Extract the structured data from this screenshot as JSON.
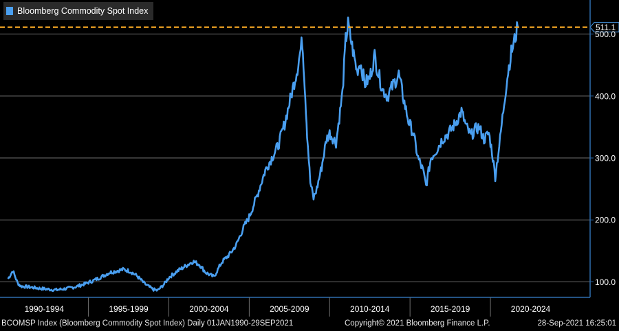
{
  "colors": {
    "background": "#000000",
    "series": "#4a9ff0",
    "reference": "#f5a623",
    "grid": "#707070",
    "axis": "#2f6fb0",
    "text": "#ffffff"
  },
  "legend": {
    "label": "Bloomberg Commodity Spot Index"
  },
  "footer": {
    "left": "BCOMSP Index (Bloomberg Commodity Spot Index)  Daily 01JAN1990-29SEP2021",
    "mid": "Copyright© 2021 Bloomberg Finance L.P.",
    "right": "28-Sep-2021 16:25:01"
  },
  "chart_data": {
    "type": "line",
    "title": "",
    "xlabel": "",
    "ylabel": "",
    "ylim": [
      75,
      555
    ],
    "xlim": [
      1989.5,
      2026.2
    ],
    "grid": true,
    "legend_position": "top-left",
    "y_ticks": [
      {
        "value": 100,
        "label": "100.0"
      },
      {
        "value": 200,
        "label": "200.0"
      },
      {
        "value": 300,
        "label": "300.0"
      },
      {
        "value": 400,
        "label": "400.0"
      },
      {
        "value": 500,
        "label": "500.0"
      }
    ],
    "x_groups": [
      {
        "label": "1990-1994",
        "start": 1989.5,
        "end": 1995.0
      },
      {
        "label": "1995-1999",
        "start": 1995.0,
        "end": 2000.0
      },
      {
        "label": "2000-2004",
        "start": 2000.0,
        "end": 2005.0
      },
      {
        "label": "2005-2009",
        "start": 2005.0,
        "end": 2010.0
      },
      {
        "label": "2010-2014",
        "start": 2010.0,
        "end": 2015.0
      },
      {
        "label": "2015-2019",
        "start": 2015.0,
        "end": 2020.0
      },
      {
        "label": "2020-2024",
        "start": 2020.0,
        "end": 2026.2
      }
    ],
    "reference_line": {
      "value": 511.1,
      "label": "511.1"
    },
    "series": [
      {
        "name": "Bloomberg Commodity Spot Index",
        "x": [
          1990.0,
          1990.3,
          1990.6,
          1990.8,
          1991.2,
          1991.8,
          1992.5,
          1993.0,
          1993.6,
          1994.2,
          1994.8,
          1995.3,
          1995.8,
          1996.3,
          1996.8,
          1997.2,
          1997.6,
          1998.0,
          1998.5,
          1999.0,
          1999.3,
          1999.7,
          2000.0,
          2000.5,
          2001.0,
          2001.5,
          2001.9,
          2002.3,
          2002.8,
          2003.3,
          2003.8,
          2004.2,
          2004.6,
          2005.0,
          2005.5,
          2006.0,
          2006.4,
          2006.8,
          2007.2,
          2007.6,
          2008.0,
          2008.3,
          2008.45,
          2008.6,
          2008.8,
          2009.0,
          2009.2,
          2009.5,
          2009.8,
          2010.0,
          2010.4,
          2010.8,
          2011.0,
          2011.15,
          2011.4,
          2011.7,
          2011.9,
          2012.2,
          2012.5,
          2012.8,
          2013.0,
          2013.3,
          2013.6,
          2014.0,
          2014.3,
          2014.6,
          2014.9,
          2015.2,
          2015.5,
          2015.8,
          2016.0,
          2016.3,
          2016.7,
          2017.0,
          2017.4,
          2017.8,
          2018.2,
          2018.5,
          2018.8,
          2019.0,
          2019.3,
          2019.6,
          2019.9,
          2020.1,
          2020.3,
          2020.6,
          2020.9,
          2021.1,
          2021.3,
          2021.5,
          2021.7
        ],
        "y": [
          105,
          118,
          98,
          93,
          92,
          90,
          88,
          87,
          89,
          92,
          97,
          102,
          108,
          115,
          118,
          120,
          117,
          110,
          97,
          88,
          86,
          96,
          107,
          117,
          125,
          133,
          128,
          115,
          108,
          132,
          145,
          160,
          185,
          205,
          240,
          280,
          300,
          320,
          355,
          400,
          445,
          490,
          420,
          340,
          260,
          235,
          250,
          285,
          330,
          340,
          325,
          405,
          490,
          515,
          480,
          440,
          455,
          420,
          430,
          465,
          440,
          410,
          400,
          420,
          435,
          395,
          360,
          340,
          300,
          280,
          255,
          300,
          315,
          330,
          340,
          355,
          375,
          350,
          335,
          345,
          350,
          330,
          340,
          310,
          270,
          330,
          400,
          440,
          470,
          490,
          511.1
        ]
      }
    ]
  }
}
